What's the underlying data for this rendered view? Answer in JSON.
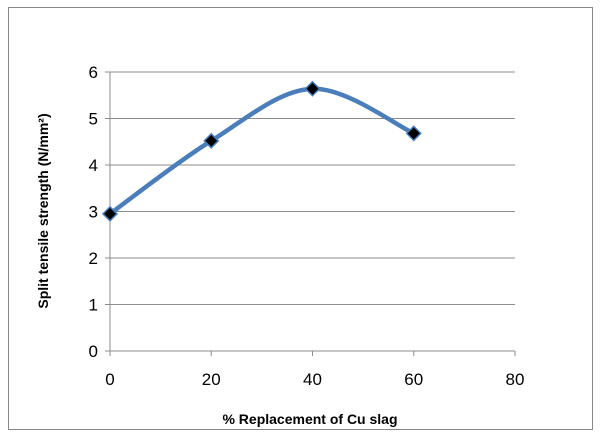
{
  "chart_data": {
    "type": "line",
    "title": "",
    "xlabel": "% Replacement of Cu slag",
    "ylabel": "Split tensile strength (N/mm²)",
    "x": [
      0,
      20,
      40,
      60
    ],
    "series": [
      {
        "values": [
          2.95,
          4.52,
          5.64,
          4.68
        ]
      }
    ],
    "xlim": [
      0,
      80
    ],
    "ylim": [
      0,
      6
    ],
    "xticks": [
      "0",
      "20",
      "40",
      "60",
      "80"
    ],
    "yticks": [
      "0",
      "1",
      "2",
      "3",
      "4",
      "5",
      "6"
    ],
    "grid": true,
    "legend": "none",
    "line_color": "#4a7ebb",
    "marker": "diamond",
    "marker_color": "#000000",
    "smooth": true
  }
}
